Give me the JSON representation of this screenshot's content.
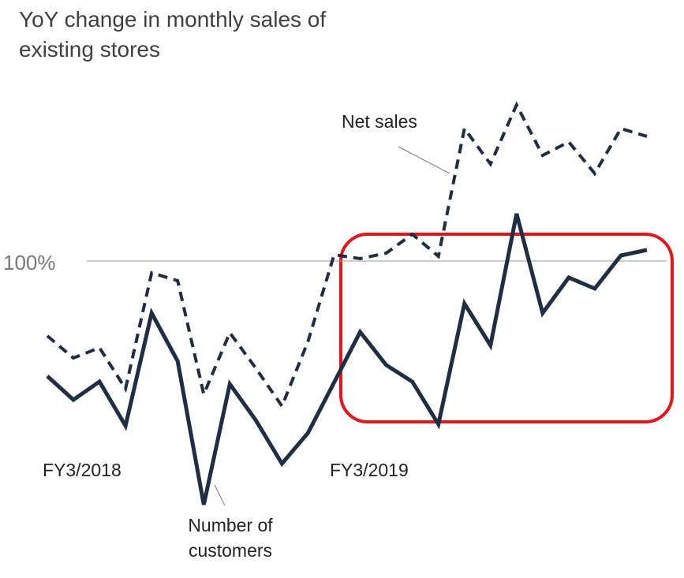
{
  "chart_data": {
    "type": "line",
    "title": "YoY change in monthly sales of existing stores",
    "categories": [
      null,
      null,
      null,
      null,
      null,
      null,
      null,
      null,
      null,
      null,
      null,
      null,
      null,
      null,
      null,
      null,
      null,
      null,
      null,
      null,
      null,
      null,
      null,
      null
    ],
    "series": [
      {
        "name": "Net sales",
        "color": "#1f2d45",
        "dash": true,
        "values": [
          95.25,
          93.85,
          94.5,
          91.9,
          99.25,
          98.75,
          91.55,
          95.45,
          93.2,
          90.8,
          94.9,
          100.4,
          100.15,
          100.5,
          101.7,
          100.3,
          108.4,
          106.15,
          109.9,
          106.7,
          107.55,
          105.55,
          108.4,
          107.9
        ]
      },
      {
        "name": "Number of customers",
        "color": "#1f2d45",
        "dash": false,
        "values": [
          92.7,
          91.2,
          92.35,
          89.55,
          96.7,
          93.65,
          84.55,
          92.2,
          89.9,
          87.15,
          89.1,
          92.3,
          95.5,
          93.4,
          92.35,
          89.65,
          97.3,
          94.65,
          103,
          96.7,
          98.95,
          98.25,
          100.35,
          100.7
        ]
      }
    ],
    "annotations": [
      "FY3/2018",
      "FY3/2019"
    ],
    "ylim": [
      84,
      110
    ],
    "yticks": [
      {
        "value": 100,
        "label": "100%"
      }
    ]
  }
}
